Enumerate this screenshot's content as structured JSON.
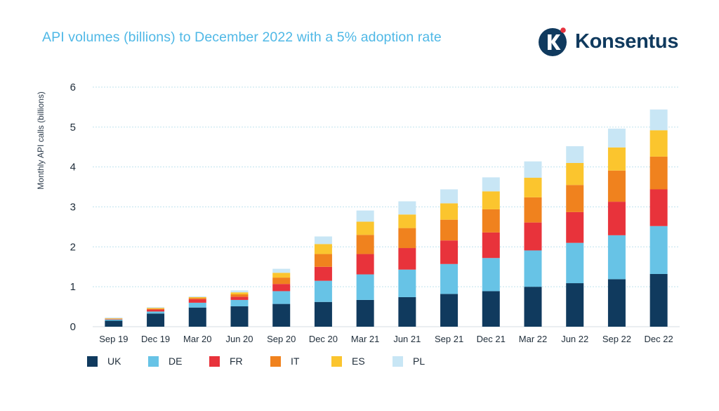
{
  "header": {
    "title": "API volumes (billions) to December 2022 with a 5% adoption rate",
    "logo_text": "Konsentus"
  },
  "colors": {
    "title": "#4fb8e6",
    "logo_navy": "#103a5e",
    "logo_dot": "#e6323e",
    "grid": "#bfe3ee"
  },
  "chart_data": {
    "type": "bar",
    "stacked": true,
    "title": "API volumes (billions) to December 2022 with a 5% adoption rate",
    "xlabel": "",
    "ylabel": "Monthly API calls (billions)",
    "ylim": [
      0,
      6
    ],
    "yticks": [
      0,
      1,
      2,
      3,
      4,
      5,
      6
    ],
    "grid": "horizontal dotted",
    "legend_position": "bottom",
    "categories": [
      "Sep 19",
      "Dec 19",
      "Mar 20",
      "Jun 20",
      "Sep 20",
      "Dec 20",
      "Mar 21",
      "Jun 21",
      "Sep 21",
      "Dec 21",
      "Mar 22",
      "Jun 22",
      "Sep 22",
      "Dec 22"
    ],
    "series": [
      {
        "name": "UK",
        "color": "#103a5e",
        "values": [
          0.15,
          0.33,
          0.48,
          0.51,
          0.57,
          0.62,
          0.67,
          0.74,
          0.82,
          0.89,
          1.0,
          1.09,
          1.19,
          1.32
        ]
      },
      {
        "name": "DE",
        "color": "#67c3e6",
        "values": [
          0.03,
          0.05,
          0.12,
          0.16,
          0.32,
          0.53,
          0.64,
          0.69,
          0.75,
          0.83,
          0.91,
          1.01,
          1.1,
          1.2
        ]
      },
      {
        "name": "FR",
        "color": "#e8333b",
        "values": [
          0.01,
          0.05,
          0.09,
          0.08,
          0.18,
          0.35,
          0.51,
          0.54,
          0.59,
          0.64,
          0.7,
          0.77,
          0.84,
          0.92
        ]
      },
      {
        "name": "IT",
        "color": "#f0821e",
        "values": [
          0.01,
          0.02,
          0.03,
          0.06,
          0.16,
          0.32,
          0.48,
          0.5,
          0.52,
          0.58,
          0.63,
          0.68,
          0.78,
          0.82
        ]
      },
      {
        "name": "ES",
        "color": "#fbc52e",
        "values": [
          0.01,
          0.02,
          0.02,
          0.05,
          0.12,
          0.25,
          0.33,
          0.34,
          0.41,
          0.45,
          0.49,
          0.55,
          0.58,
          0.66
        ]
      },
      {
        "name": "PL",
        "color": "#c8e6f5",
        "values": [
          0.02,
          0.02,
          0.02,
          0.05,
          0.1,
          0.19,
          0.28,
          0.33,
          0.35,
          0.35,
          0.41,
          0.42,
          0.47,
          0.52
        ]
      }
    ]
  }
}
